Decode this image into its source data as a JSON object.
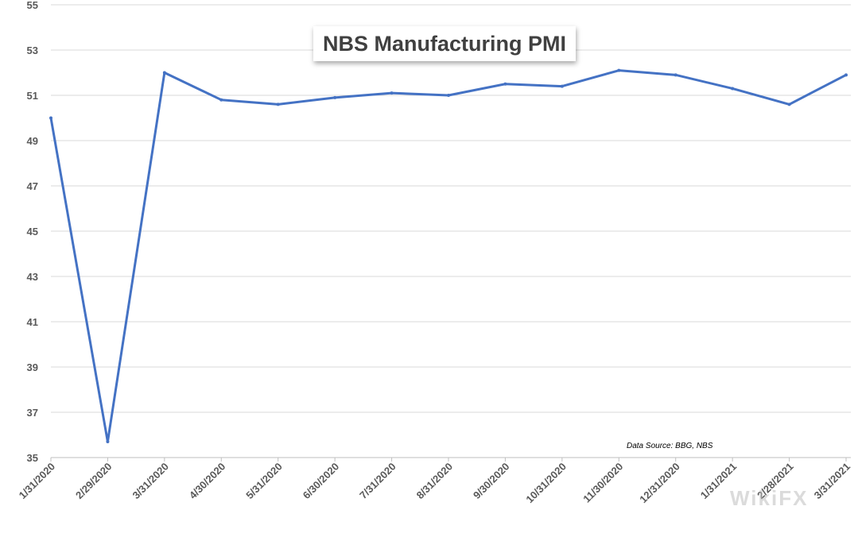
{
  "chart_data": {
    "type": "line",
    "title": "NBS Manufacturing PMI",
    "xlabel": "",
    "ylabel": "",
    "categories": [
      "1/31/2020",
      "2/29/2020",
      "3/31/2020",
      "4/30/2020",
      "5/31/2020",
      "6/30/2020",
      "7/31/2020",
      "8/31/2020",
      "9/30/2020",
      "10/31/2020",
      "11/30/2020",
      "12/31/2020",
      "1/31/2021",
      "2/28/2021",
      "3/31/2021"
    ],
    "series": [
      {
        "values": [
          50.0,
          35.7,
          52.0,
          50.8,
          50.6,
          50.9,
          51.1,
          51.0,
          51.5,
          51.4,
          52.1,
          51.9,
          51.3,
          50.6,
          51.9
        ]
      }
    ],
    "ylim": [
      35,
      55
    ],
    "yticks": [
      35,
      37,
      39,
      41,
      43,
      45,
      47,
      49,
      51,
      53,
      55
    ],
    "grid": true,
    "legend": "none",
    "line_color": "#4472c4",
    "annotation": "Data Source: BBG, NBS"
  },
  "watermark": "WikiFX"
}
